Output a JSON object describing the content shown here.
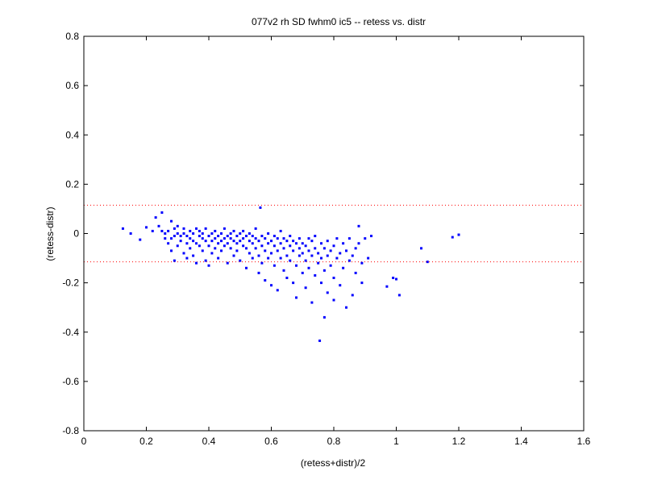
{
  "chart_data": {
    "type": "scatter",
    "title": "077v2 rh SD fwhm0 ic5 -- retess vs. distr",
    "xlabel": "(retess+distr)/2",
    "ylabel": "(retess-distr)",
    "xlim": [
      0,
      1.6
    ],
    "ylim": [
      -0.8,
      0.8
    ],
    "xticks": [
      0,
      0.2,
      0.4,
      0.6,
      0.8,
      1,
      1.2,
      1.4,
      1.6
    ],
    "yticks": [
      -0.8,
      -0.6,
      -0.4,
      -0.2,
      0,
      0.2,
      0.4,
      0.6,
      0.8
    ],
    "xtick_labels": [
      "0",
      "0.2",
      "0.4",
      "0.6",
      "0.8",
      "1",
      "1.2",
      "1.4",
      "1.6"
    ],
    "ytick_labels": [
      "-0.8",
      "-0.6",
      "-0.4",
      "-0.2",
      "0",
      "0.2",
      "0.4",
      "0.6",
      "0.8"
    ],
    "grid": false,
    "box": true,
    "marker": "point",
    "marker_color": "#0000ff",
    "reference_lines": [
      {
        "y": 0.115,
        "style": "dotted",
        "color": "#ff0000"
      },
      {
        "y": -0.115,
        "style": "dotted",
        "color": "#ff0000"
      }
    ],
    "points": [
      [
        0.125,
        0.02
      ],
      [
        0.15,
        0.0
      ],
      [
        0.18,
        -0.025
      ],
      [
        0.2,
        0.025
      ],
      [
        0.22,
        0.01
      ],
      [
        0.23,
        0.065
      ],
      [
        0.24,
        0.03
      ],
      [
        0.25,
        0.085
      ],
      [
        0.25,
        0.01
      ],
      [
        0.26,
        -0.02
      ],
      [
        0.26,
        0.0
      ],
      [
        0.27,
        -0.04
      ],
      [
        0.27,
        0.01
      ],
      [
        0.28,
        -0.07
      ],
      [
        0.28,
        0.05
      ],
      [
        0.28,
        -0.02
      ],
      [
        0.29,
        -0.11
      ],
      [
        0.29,
        0.02
      ],
      [
        0.29,
        -0.01
      ],
      [
        0.3,
        0.0
      ],
      [
        0.3,
        -0.05
      ],
      [
        0.3,
        0.03
      ],
      [
        0.31,
        -0.03
      ],
      [
        0.31,
        -0.01
      ],
      [
        0.32,
        0.0
      ],
      [
        0.32,
        -0.08
      ],
      [
        0.32,
        0.02
      ],
      [
        0.33,
        -0.04
      ],
      [
        0.33,
        -0.01
      ],
      [
        0.33,
        -0.1
      ],
      [
        0.34,
        0.01
      ],
      [
        0.34,
        -0.02
      ],
      [
        0.34,
        -0.06
      ],
      [
        0.35,
        -0.03
      ],
      [
        0.35,
        0.0
      ],
      [
        0.35,
        -0.09
      ],
      [
        0.36,
        0.02
      ],
      [
        0.36,
        -0.04
      ],
      [
        0.36,
        -0.12
      ],
      [
        0.37,
        -0.01
      ],
      [
        0.37,
        -0.05
      ],
      [
        0.37,
        0.01
      ],
      [
        0.38,
        -0.02
      ],
      [
        0.38,
        -0.07
      ],
      [
        0.38,
        0.0
      ],
      [
        0.39,
        -0.03
      ],
      [
        0.39,
        -0.11
      ],
      [
        0.39,
        0.02
      ],
      [
        0.4,
        -0.01
      ],
      [
        0.4,
        -0.05
      ],
      [
        0.4,
        -0.13
      ],
      [
        0.41,
        0.0
      ],
      [
        0.41,
        -0.03
      ],
      [
        0.41,
        -0.08
      ],
      [
        0.42,
        -0.02
      ],
      [
        0.42,
        0.01
      ],
      [
        0.42,
        -0.06
      ],
      [
        0.43,
        -0.04
      ],
      [
        0.43,
        -0.01
      ],
      [
        0.43,
        -0.1
      ],
      [
        0.44,
        0.0
      ],
      [
        0.44,
        -0.03
      ],
      [
        0.44,
        -0.07
      ],
      [
        0.45,
        -0.02
      ],
      [
        0.45,
        0.02
      ],
      [
        0.45,
        -0.05
      ],
      [
        0.46,
        -0.01
      ],
      [
        0.46,
        -0.04
      ],
      [
        0.46,
        -0.12
      ],
      [
        0.47,
        0.0
      ],
      [
        0.47,
        -0.06
      ],
      [
        0.47,
        -0.02
      ],
      [
        0.48,
        -0.03
      ],
      [
        0.48,
        0.01
      ],
      [
        0.48,
        -0.09
      ],
      [
        0.49,
        -0.01
      ],
      [
        0.49,
        -0.04
      ],
      [
        0.49,
        -0.07
      ],
      [
        0.5,
        0.0
      ],
      [
        0.5,
        -0.03
      ],
      [
        0.5,
        -0.11
      ],
      [
        0.51,
        -0.02
      ],
      [
        0.51,
        -0.05
      ],
      [
        0.51,
        0.01
      ],
      [
        0.52,
        -0.01
      ],
      [
        0.52,
        -0.06
      ],
      [
        0.52,
        -0.14
      ],
      [
        0.53,
        -0.03
      ],
      [
        0.53,
        0.0
      ],
      [
        0.53,
        -0.08
      ],
      [
        0.54,
        -0.04
      ],
      [
        0.54,
        -0.01
      ],
      [
        0.54,
        -0.1
      ],
      [
        0.55,
        -0.02
      ],
      [
        0.55,
        -0.06
      ],
      [
        0.55,
        0.02
      ],
      [
        0.56,
        -0.03
      ],
      [
        0.56,
        -0.09
      ],
      [
        0.56,
        -0.16
      ],
      [
        0.565,
        0.105
      ],
      [
        0.57,
        -0.01
      ],
      [
        0.57,
        -0.05
      ],
      [
        0.57,
        -0.12
      ],
      [
        0.58,
        -0.02
      ],
      [
        0.58,
        -0.07
      ],
      [
        0.58,
        -0.19
      ],
      [
        0.59,
        -0.04
      ],
      [
        0.59,
        0.0
      ],
      [
        0.59,
        -0.1
      ],
      [
        0.6,
        -0.03
      ],
      [
        0.6,
        -0.08
      ],
      [
        0.6,
        -0.21
      ],
      [
        0.61,
        -0.05
      ],
      [
        0.61,
        -0.01
      ],
      [
        0.61,
        -0.13
      ],
      [
        0.62,
        -0.02
      ],
      [
        0.62,
        -0.07
      ],
      [
        0.62,
        -0.23
      ],
      [
        0.63,
        -0.04
      ],
      [
        0.63,
        -0.1
      ],
      [
        0.63,
        0.01
      ],
      [
        0.64,
        -0.06
      ],
      [
        0.64,
        -0.15
      ],
      [
        0.64,
        -0.02
      ],
      [
        0.65,
        -0.03
      ],
      [
        0.65,
        -0.09
      ],
      [
        0.65,
        -0.18
      ],
      [
        0.66,
        -0.05
      ],
      [
        0.66,
        -0.11
      ],
      [
        0.66,
        -0.01
      ],
      [
        0.67,
        -0.07
      ],
      [
        0.67,
        -0.2
      ],
      [
        0.67,
        -0.03
      ],
      [
        0.68,
        -0.04
      ],
      [
        0.68,
        -0.13
      ],
      [
        0.68,
        -0.26
      ],
      [
        0.69,
        -0.06
      ],
      [
        0.69,
        -0.09
      ],
      [
        0.69,
        -0.02
      ],
      [
        0.7,
        -0.08
      ],
      [
        0.7,
        -0.16
      ],
      [
        0.7,
        -0.04
      ],
      [
        0.71,
        -0.05
      ],
      [
        0.71,
        -0.22
      ],
      [
        0.71,
        -0.11
      ],
      [
        0.72,
        -0.07
      ],
      [
        0.72,
        -0.14
      ],
      [
        0.72,
        -0.02
      ],
      [
        0.73,
        -0.03
      ],
      [
        0.73,
        -0.09
      ],
      [
        0.73,
        -0.28
      ],
      [
        0.74,
        -0.06
      ],
      [
        0.74,
        -0.17
      ],
      [
        0.74,
        -0.01
      ],
      [
        0.75,
        -0.08
      ],
      [
        0.75,
        -0.12
      ],
      [
        0.755,
        -0.435
      ],
      [
        0.76,
        -0.04
      ],
      [
        0.76,
        -0.2
      ],
      [
        0.76,
        -0.1
      ],
      [
        0.77,
        -0.34
      ],
      [
        0.77,
        -0.06
      ],
      [
        0.77,
        -0.15
      ],
      [
        0.78,
        -0.09
      ],
      [
        0.78,
        -0.24
      ],
      [
        0.78,
        -0.03
      ],
      [
        0.79,
        -0.07
      ],
      [
        0.79,
        -0.13
      ],
      [
        0.8,
        -0.05
      ],
      [
        0.8,
        -0.18
      ],
      [
        0.8,
        -0.27
      ],
      [
        0.81,
        -0.1
      ],
      [
        0.81,
        -0.02
      ],
      [
        0.82,
        -0.08
      ],
      [
        0.82,
        -0.21
      ],
      [
        0.83,
        -0.04
      ],
      [
        0.83,
        -0.14
      ],
      [
        0.84,
        -0.3
      ],
      [
        0.84,
        -0.07
      ],
      [
        0.85,
        -0.11
      ],
      [
        0.85,
        -0.02
      ],
      [
        0.86,
        -0.09
      ],
      [
        0.86,
        -0.25
      ],
      [
        0.87,
        -0.06
      ],
      [
        0.87,
        -0.16
      ],
      [
        0.88,
        -0.04
      ],
      [
        0.88,
        0.03
      ],
      [
        0.89,
        -0.12
      ],
      [
        0.89,
        -0.2
      ],
      [
        0.9,
        -0.02
      ],
      [
        0.91,
        -0.1
      ],
      [
        0.92,
        -0.01
      ],
      [
        0.97,
        -0.215
      ],
      [
        0.99,
        -0.18
      ],
      [
        1.0,
        -0.185
      ],
      [
        1.01,
        -0.25
      ],
      [
        1.08,
        -0.06
      ],
      [
        1.1,
        -0.115
      ],
      [
        1.18,
        -0.015
      ],
      [
        1.2,
        -0.005
      ]
    ]
  }
}
